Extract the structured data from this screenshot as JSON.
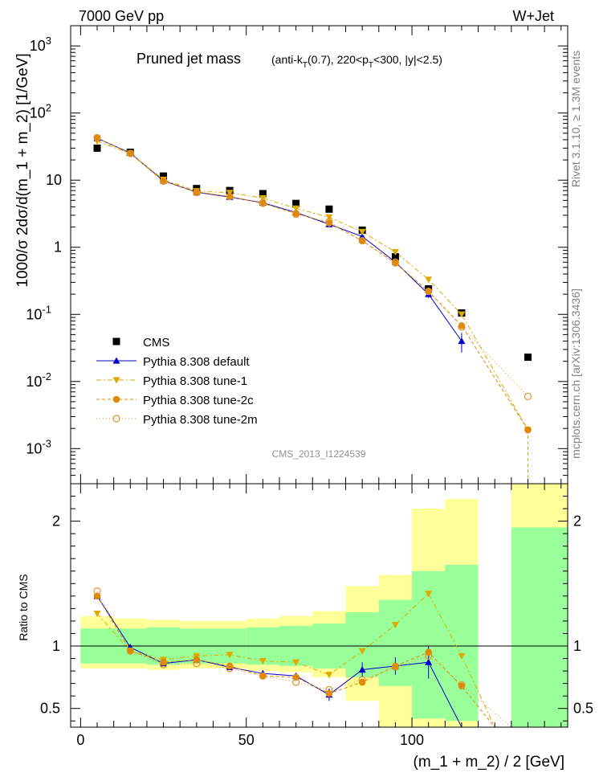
{
  "header": {
    "left": "7000 GeV pp",
    "right": "W+Jet"
  },
  "side_labels": {
    "rivet": "Rivet 3.1.10, ≥ 1.3M events",
    "mcplots": "mcplots.cern.ch [arXiv:1306.3436]"
  },
  "chart_data": [
    {
      "type": "scatter",
      "title": "Pruned jet mass",
      "subtitle": "(anti-k_T(0.7), 220<p_T<300, |y|<2.5)",
      "analysis_tag": "CMS_2013_I1224539",
      "ylabel": "1000/σ 2dσ/d(m_1 + m_2) [1/GeV]",
      "yscale": "log",
      "ylim": [
        0.0003,
        2000
      ],
      "xlim": [
        -3,
        147
      ],
      "yticks": [
        {
          "v": 0.001,
          "b": "10",
          "e": "-3"
        },
        {
          "v": 0.01,
          "b": "10",
          "e": "-2"
        },
        {
          "v": 0.1,
          "b": "10",
          "e": "-1"
        },
        {
          "v": 1,
          "b": "1",
          "e": ""
        },
        {
          "v": 10,
          "b": "10",
          "e": ""
        },
        {
          "v": 100,
          "b": "10",
          "e": "2"
        },
        {
          "v": 1000,
          "b": "10",
          "e": "3"
        }
      ],
      "legend_position": "lower-left",
      "series": [
        {
          "name": "CMS",
          "color": "#000000",
          "marker": "square",
          "x": [
            5,
            15,
            25,
            35,
            45,
            55,
            65,
            75,
            85,
            95,
            105,
            115,
            135
          ],
          "y": [
            30,
            26,
            11.5,
            7.5,
            7.0,
            6.3,
            4.5,
            3.7,
            1.8,
            0.72,
            0.24,
            0.105,
            0.023
          ]
        },
        {
          "name": "Pythia 8.308 default",
          "color": "#0000cc",
          "marker": "triangle-up",
          "dash": "",
          "x": [
            5,
            15,
            25,
            35,
            45,
            55,
            65,
            75,
            85,
            95,
            105,
            115
          ],
          "y": [
            42,
            25.5,
            9.8,
            6.6,
            5.6,
            4.6,
            3.3,
            2.2,
            1.45,
            0.6,
            0.2,
            0.04
          ],
          "err": [
            0,
            0,
            0,
            0,
            0,
            0,
            0,
            0.15,
            0,
            0,
            0.025,
            0.013
          ]
        },
        {
          "name": "Pythia 8.308 tune-1",
          "color": "#ddaa00",
          "marker": "triangle-down",
          "dash": "6,3,2,3",
          "x": [
            5,
            15,
            25,
            35,
            45,
            55,
            65,
            75,
            85,
            95,
            105,
            115,
            135
          ],
          "y": [
            38,
            25,
            10.2,
            6.9,
            6.5,
            5.4,
            3.8,
            2.8,
            1.7,
            0.85,
            0.33,
            0.1,
            0.0019
          ]
        },
        {
          "name": "Pythia 8.308 tune-2c",
          "color": "#e08800",
          "marker": "circle",
          "dash": "4,3",
          "x": [
            5,
            15,
            25,
            35,
            45,
            55,
            65,
            75,
            85,
            95,
            105,
            115,
            135
          ],
          "y": [
            42,
            25,
            9.6,
            6.7,
            5.7,
            4.5,
            3.2,
            2.3,
            1.25,
            0.58,
            0.22,
            0.068,
            0.0019
          ]
        },
        {
          "name": "Pythia 8.308 tune-2m",
          "color": "#e09030",
          "marker": "circle-open",
          "dash": "1,3",
          "x": [
            5,
            15,
            25,
            35,
            45,
            55,
            65,
            75,
            85,
            95,
            105,
            115,
            135
          ],
          "y": [
            43,
            25,
            9.7,
            6.5,
            5.7,
            4.6,
            3.1,
            2.4,
            1.25,
            0.6,
            0.22,
            0.065,
            0.006
          ]
        }
      ]
    },
    {
      "type": "scatter",
      "ylabel": "Ratio to CMS",
      "xlabel": "(m_1 + m_2) / 2 [GeV]",
      "xlim": [
        -3,
        147
      ],
      "ylim": [
        0.35,
        2.3
      ],
      "yticks": [
        0.5,
        1,
        2
      ],
      "xticks": [
        0,
        50,
        100
      ],
      "bands": [
        {
          "x0": 0,
          "x1": 10,
          "g": [
            0.86,
            1.14
          ],
          "y": [
            0.82,
            1.24
          ]
        },
        {
          "x0": 10,
          "x1": 20,
          "g": [
            0.86,
            1.14
          ],
          "y": [
            0.82,
            1.22
          ]
        },
        {
          "x0": 20,
          "x1": 30,
          "g": [
            0.85,
            1.15
          ],
          "y": [
            0.81,
            1.21
          ]
        },
        {
          "x0": 30,
          "x1": 40,
          "g": [
            0.86,
            1.14
          ],
          "y": [
            0.82,
            1.2
          ]
        },
        {
          "x0": 40,
          "x1": 50,
          "g": [
            0.86,
            1.14
          ],
          "y": [
            0.82,
            1.2
          ]
        },
        {
          "x0": 50,
          "x1": 60,
          "g": [
            0.85,
            1.15
          ],
          "y": [
            0.8,
            1.22
          ]
        },
        {
          "x0": 60,
          "x1": 70,
          "g": [
            0.84,
            1.16
          ],
          "y": [
            0.79,
            1.24
          ]
        },
        {
          "x0": 70,
          "x1": 80,
          "g": [
            0.82,
            1.18
          ],
          "y": [
            0.75,
            1.28
          ]
        },
        {
          "x0": 80,
          "x1": 90,
          "g": [
            0.75,
            1.27
          ],
          "y": [
            0.56,
            1.48
          ]
        },
        {
          "x0": 90,
          "x1": 100,
          "g": [
            0.68,
            1.37
          ],
          "y": [
            0.35,
            1.57
          ]
        },
        {
          "x0": 100,
          "x1": 110,
          "g": [
            0.42,
            1.6
          ],
          "y": [
            0.35,
            2.1
          ]
        },
        {
          "x0": 110,
          "x1": 120,
          "g": [
            0.4,
            1.65
          ],
          "y": [
            0.35,
            2.18
          ]
        },
        {
          "x0": 130,
          "x1": 147,
          "g": [
            0.35,
            1.95
          ],
          "y": [
            0.35,
            2.3
          ]
        }
      ],
      "series": [
        {
          "name": "Pythia 8.308 default",
          "color": "#0000cc",
          "marker": "triangle-up",
          "dash": "",
          "x": [
            5,
            15,
            25,
            35,
            45,
            55,
            65,
            75,
            85,
            95,
            105,
            115
          ],
          "y": [
            1.4,
            0.99,
            0.86,
            0.89,
            0.83,
            0.78,
            0.76,
            0.61,
            0.81,
            0.84,
            0.87,
            0.33
          ],
          "err": [
            0,
            0,
            0,
            0,
            0,
            0,
            0,
            0.05,
            0.06,
            0.07,
            0.13,
            0
          ]
        },
        {
          "name": "Pythia 8.308 tune-1",
          "color": "#ddaa00",
          "marker": "triangle-down",
          "dash": "6,3,2,3",
          "x": [
            5,
            15,
            25,
            35,
            45,
            55,
            65,
            75,
            85,
            95,
            105,
            115,
            125
          ],
          "y": [
            1.26,
            0.96,
            0.89,
            0.92,
            0.93,
            0.88,
            0.87,
            0.77,
            0.96,
            1.17,
            1.42,
            0.92,
            0.34
          ]
        },
        {
          "name": "Pythia 8.308 tune-2c",
          "color": "#e08800",
          "marker": "circle",
          "dash": "4,3",
          "x": [
            5,
            15,
            25,
            35,
            45,
            55,
            65,
            75,
            85,
            95,
            105,
            115,
            125
          ],
          "y": [
            1.4,
            0.96,
            0.87,
            0.89,
            0.84,
            0.76,
            0.75,
            0.62,
            0.71,
            0.84,
            0.95,
            0.68,
            0.34
          ]
        },
        {
          "name": "Pythia 8.308 tune-2m",
          "color": "#e09030",
          "marker": "circle-open",
          "dash": "1,3",
          "x": [
            5,
            15,
            25,
            35,
            45,
            55,
            65,
            75,
            85,
            95,
            105,
            115,
            130
          ],
          "y": [
            1.44,
            0.96,
            0.85,
            0.86,
            0.82,
            0.76,
            0.71,
            0.65,
            0.73,
            0.83,
            0.92,
            0.69,
            0.34
          ]
        }
      ]
    }
  ]
}
